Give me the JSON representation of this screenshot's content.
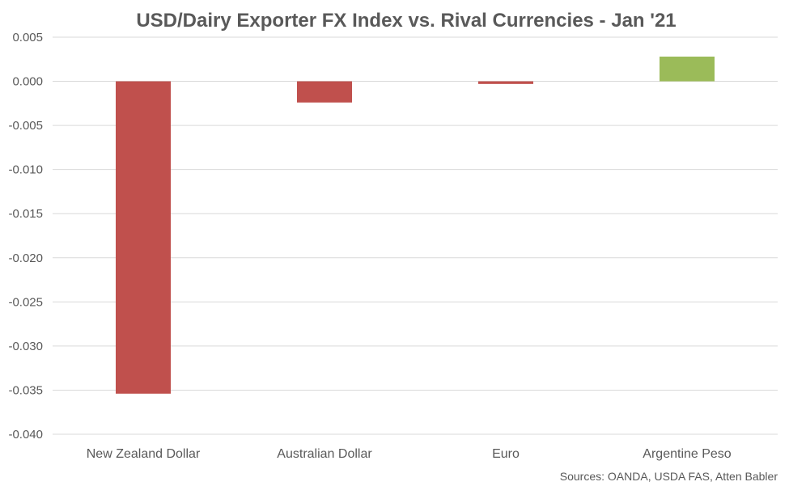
{
  "chart_data": {
    "type": "bar",
    "title": "USD/Dairy Exporter FX Index vs. Rival Currencies - Jan '21",
    "categories": [
      "New Zealand Dollar",
      "Australian Dollar",
      "Euro",
      "Argentine Peso"
    ],
    "values": [
      -0.0354,
      -0.0024,
      -0.0003,
      0.0028
    ],
    "bar_colors": [
      "#c0504d",
      "#c0504d",
      "#c0504d",
      "#9bbb59"
    ],
    "ylim": [
      -0.04,
      0.005
    ],
    "yticks": [
      0.005,
      0.0,
      -0.005,
      -0.01,
      -0.015,
      -0.02,
      -0.025,
      -0.03,
      -0.035,
      -0.04
    ],
    "ytick_labels": [
      "0.005",
      "0.000",
      "-0.005",
      "-0.010",
      "-0.015",
      "-0.020",
      "-0.025",
      "-0.030",
      "-0.035",
      "-0.040"
    ],
    "grid": true,
    "legend": false,
    "xlabel": "",
    "ylabel": "",
    "source_note": "Sources: OANDA, USDA FAS, Atten Babler"
  }
}
